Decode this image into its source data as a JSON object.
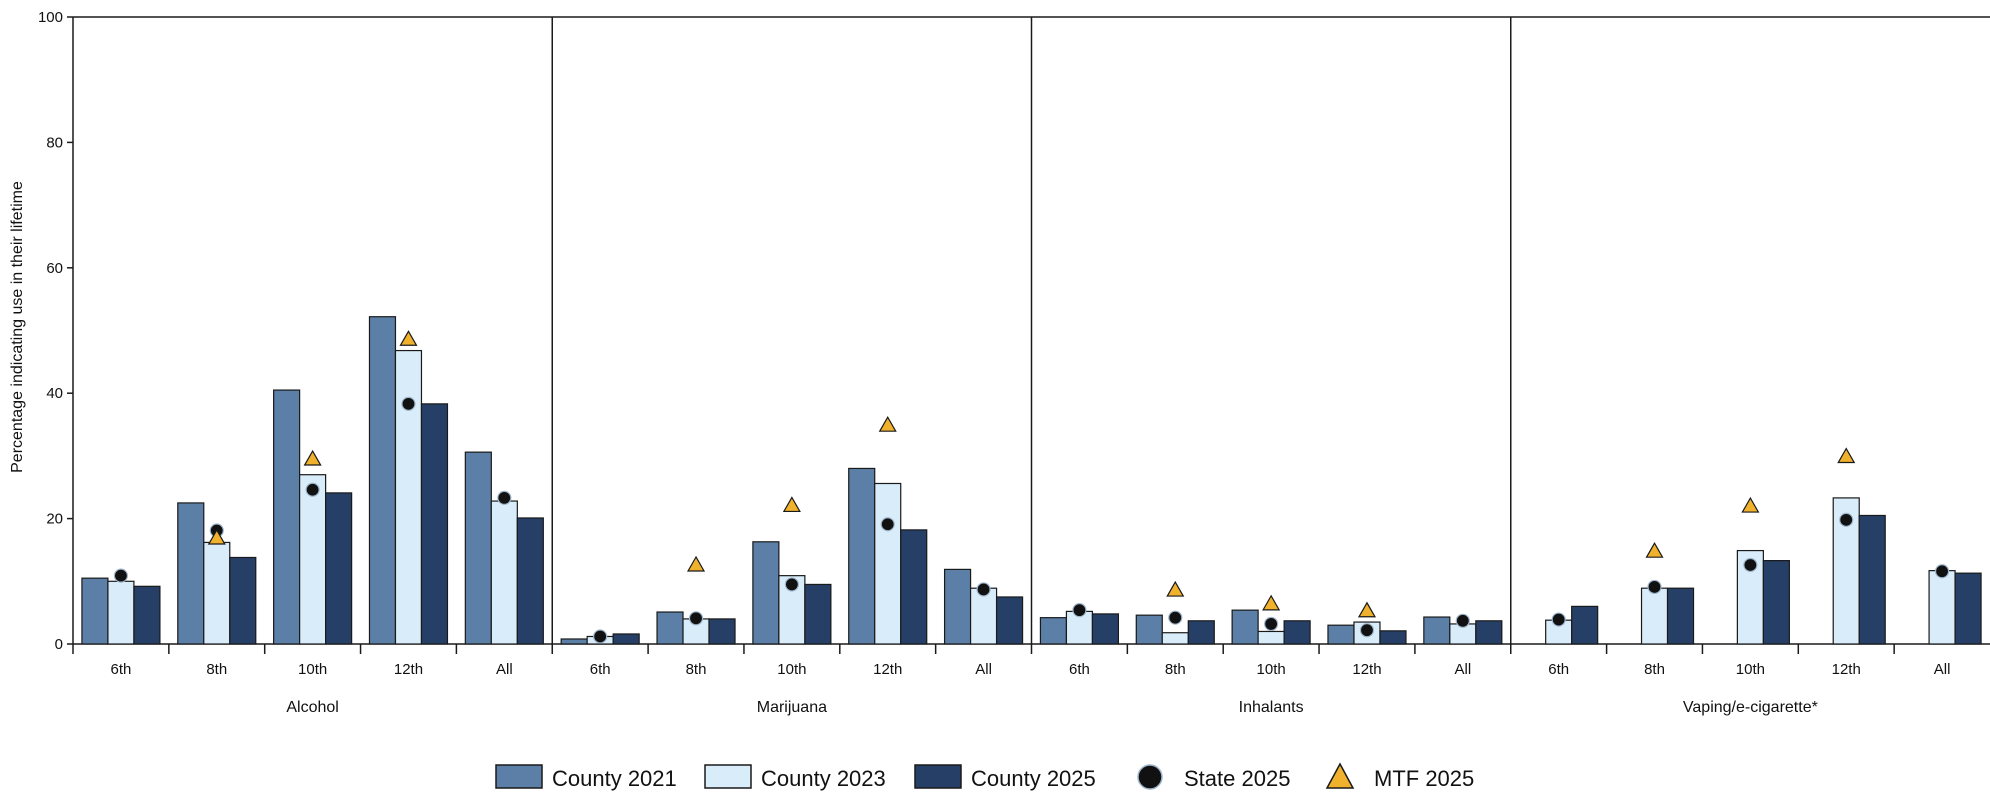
{
  "chart_data": {
    "type": "bar",
    "ylabel": "Percentage indicating use in their lifetime",
    "ylim": [
      0,
      100
    ],
    "yticks": [
      "0",
      "20",
      "40",
      "60",
      "80",
      "100"
    ],
    "subcategories": [
      "6th",
      "8th",
      "10th",
      "12th",
      "All"
    ],
    "groups": [
      {
        "name": "Alcohol",
        "series": {
          "County 2021": [
            10.5,
            22.5,
            40.5,
            52.2,
            30.6
          ],
          "County 2023": [
            10.0,
            16.2,
            27.0,
            46.8,
            22.8
          ],
          "County 2025": [
            9.2,
            13.8,
            24.1,
            38.3,
            20.1
          ],
          "State 2025": [
            10.9,
            18.1,
            24.6,
            38.3,
            23.3
          ],
          "MTF 2025": [
            null,
            16.9,
            29.5,
            48.6,
            null
          ]
        }
      },
      {
        "name": "Marijuana",
        "series": {
          "County 2021": [
            0.8,
            5.1,
            16.3,
            28.0,
            11.9
          ],
          "County 2023": [
            1.2,
            4.0,
            10.9,
            25.6,
            8.9
          ],
          "County 2025": [
            1.6,
            4.0,
            9.5,
            18.2,
            7.5
          ],
          "State 2025": [
            1.2,
            4.1,
            9.5,
            19.1,
            8.7
          ],
          "MTF 2025": [
            null,
            12.6,
            22.1,
            34.9,
            null
          ]
        }
      },
      {
        "name": "Inhalants",
        "series": {
          "County 2021": [
            4.2,
            4.6,
            5.4,
            3.0,
            4.3
          ],
          "County 2023": [
            5.2,
            1.8,
            2.0,
            3.5,
            3.2
          ],
          "County 2025": [
            4.8,
            3.7,
            3.7,
            2.1,
            3.7
          ],
          "State 2025": [
            5.4,
            4.2,
            3.2,
            2.2,
            3.7
          ],
          "MTF 2025": [
            null,
            8.6,
            6.4,
            5.3,
            null
          ]
        }
      },
      {
        "name": "Vaping/e-cigarette*",
        "series": {
          "County 2021": [
            null,
            null,
            null,
            null,
            null
          ],
          "County 2023": [
            3.8,
            8.9,
            14.9,
            23.3,
            11.7
          ],
          "County 2025": [
            6.0,
            8.9,
            13.3,
            20.5,
            11.3
          ],
          "State 2025": [
            3.9,
            9.1,
            12.6,
            19.8,
            11.6
          ],
          "MTF 2025": [
            null,
            14.8,
            22.0,
            29.9,
            null
          ]
        }
      }
    ],
    "legend": [
      {
        "label": "County 2021",
        "kind": "bar"
      },
      {
        "label": "County 2023",
        "kind": "bar"
      },
      {
        "label": "County 2025",
        "kind": "bar"
      },
      {
        "label": "State 2025",
        "kind": "circle"
      },
      {
        "label": "MTF 2025",
        "kind": "triangle"
      }
    ],
    "legend_position": "bottom-center",
    "colors": {
      "County 2021": "#5b7fa6",
      "County 2023": "#d9ecfa",
      "County 2025": "#263f67",
      "State 2025": "#111111",
      "MTF 2025": "#f0b12d",
      "outline": "#1a1a1a"
    }
  }
}
